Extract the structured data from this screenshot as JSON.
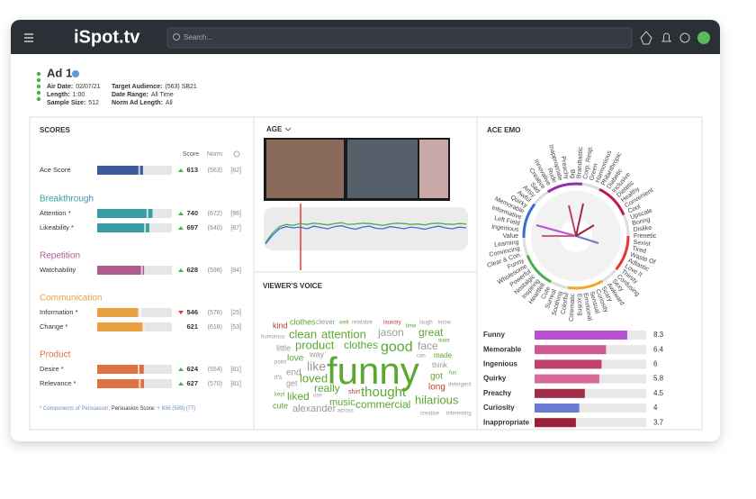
{
  "app": {
    "logo": "iSpot.tv",
    "search_placeholder": "Search..."
  },
  "ad": {
    "title": "Ad 1",
    "details": [
      {
        "label": "Air Date:",
        "value": "02/07/21"
      },
      {
        "label": "Length:",
        "value": "1:00"
      },
      {
        "label": "Sample Size:",
        "value": "512"
      },
      {
        "label": "Target Audience:",
        "value": "(563) SB21"
      },
      {
        "label": "Date Range:",
        "value": "All Time"
      },
      {
        "label": "Norm Ad Length:",
        "value": "All"
      }
    ]
  },
  "scores": {
    "title": "SCORES",
    "columns": [
      "Score",
      "Norm"
    ],
    "xlim": [
      0,
      1000
    ],
    "ace": {
      "name": "Ace Score",
      "color": "#3d5a99",
      "score": 613,
      "norm": {
        "value": 563,
        "label": "(563)"
      },
      "percentile": "[82]",
      "trend": "up"
    },
    "sections": [
      {
        "name": "Breakthrough",
        "color": "#3a9ca6",
        "rows": [
          {
            "name": "Attention *",
            "score": 740,
            "norm": {
              "value": 672,
              "label": "(672)"
            },
            "percentile": "[96]",
            "trend": "up"
          },
          {
            "name": "Likeability *",
            "score": 697,
            "norm": {
              "value": 640,
              "label": "(640)"
            },
            "percentile": "[87]",
            "trend": "up"
          }
        ]
      },
      {
        "name": "Repetition",
        "color": "#b05c8f",
        "rows": [
          {
            "name": "Watchability",
            "score": 628,
            "norm": {
              "value": 598,
              "label": "(598)"
            },
            "percentile": "[84]",
            "trend": "up"
          }
        ]
      },
      {
        "name": "Communication",
        "color": "#e8a040",
        "rows": [
          {
            "name": "Information *",
            "score": 546,
            "norm": {
              "value": 578,
              "label": "(578)"
            },
            "percentile": "[25]",
            "trend": "down"
          },
          {
            "name": "Change *",
            "score": 621,
            "norm": {
              "value": 618,
              "label": "(618)"
            },
            "percentile": "[53]"
          }
        ]
      },
      {
        "name": "Product",
        "color": "#e07040",
        "rows": [
          {
            "name": "Desire *",
            "score": 624,
            "norm": {
              "value": 554,
              "label": "(554)"
            },
            "percentile": "[81]",
            "trend": "up"
          },
          {
            "name": "Relevance *",
            "score": 627,
            "norm": {
              "value": 570,
              "label": "(570)"
            },
            "percentile": "[81]",
            "trend": "up"
          }
        ]
      }
    ],
    "footnote": [
      "* Components of Persuasion; ",
      "Persuasion Score:",
      " + 636 (599) [77]"
    ]
  },
  "age": {
    "title": "AGE",
    "type": "line",
    "ylim": [
      0,
      100
    ],
    "series": [
      {
        "color": "#4caf50",
        "values": [
          18,
          40,
          55,
          60,
          58,
          62,
          60,
          63,
          61,
          59,
          62,
          64,
          60,
          61,
          63,
          62,
          60,
          58,
          61,
          63,
          62,
          60,
          61,
          59,
          62,
          63,
          61,
          60,
          62,
          61
        ]
      },
      {
        "color": "#3a6fd0",
        "values": [
          15,
          35,
          50,
          55,
          52,
          54,
          50,
          56,
          53,
          50,
          55,
          57,
          52,
          49,
          54,
          56,
          51,
          50,
          55,
          53,
          50,
          54,
          52,
          49,
          53,
          56,
          52,
          50,
          54,
          52
        ]
      }
    ]
  },
  "voice": {
    "title": "VIEWER'S VOICE",
    "words": [
      "kind",
      "clothes",
      "clever",
      "well",
      "relatable",
      "laundry",
      "time",
      "laugh",
      "know",
      "humorous",
      "jason",
      "clean",
      "attention",
      "great",
      "want",
      "little",
      "product",
      "clothes",
      "good",
      "face",
      "can",
      "made",
      "point",
      "like",
      "funny",
      "think",
      "end",
      "fun",
      "it's",
      "way",
      "get",
      "loved",
      "got",
      "detergent",
      "kept",
      "liked",
      "use",
      "really",
      "shirt",
      "thought",
      "long",
      "hilarious",
      "music",
      "cute",
      "alexander",
      "across",
      "commercial",
      "creative",
      "interesting",
      "love"
    ]
  },
  "ace_emo": {
    "title": "ACE EMO",
    "radial_labels": [
      "Brandtastic",
      "Corp. Resp.",
      "Green",
      "Harmonious",
      "Philanthropic",
      "Diabetic",
      "Inclusive",
      "Dietetic",
      "Healthy",
      "Convenient",
      "Cool",
      "Upscale",
      "Boring",
      "Dislike",
      "Frenetic",
      "Sexist",
      "Tired",
      "Waste Of",
      "Adtastic",
      "Love It",
      "Thirsty",
      "Confusing",
      "Sexy",
      "Awkward",
      "Scary",
      "Curiosity",
      "Sensual",
      "Emotional",
      "Exciting",
      "Cinematic",
      "Colorful",
      "Soothing",
      "Surreal",
      "Cute",
      "Heartfelt",
      "Inspiring",
      "Nostalgic",
      "Powerful",
      "Wholesome",
      "Funny",
      "Clear & Con.",
      "Convincing",
      "Learning",
      "Value",
      "Ingenious",
      "Left Field",
      "Informative",
      "Memorable",
      "Quirky",
      "Awful",
      "Artsy",
      "Sad",
      "Creative",
      "Innovative",
      "Rude",
      "Inappropriate",
      "Preachy",
      "Big"
    ],
    "chart": {
      "type": "bar",
      "categories": [
        "Funny",
        "Memorable",
        "Ingenious",
        "Quirky",
        "Preachy",
        "Curiosity",
        "Inappropriate"
      ],
      "values": [
        8.3,
        6.4,
        6,
        5.8,
        4.5,
        4,
        3.7
      ],
      "colors": [
        "#b64fd0",
        "#cc5a90",
        "#c0406e",
        "#d86a9a",
        "#a02c48",
        "#6a7ad0",
        "#9a2038"
      ],
      "xlim": [
        0,
        10
      ]
    }
  }
}
